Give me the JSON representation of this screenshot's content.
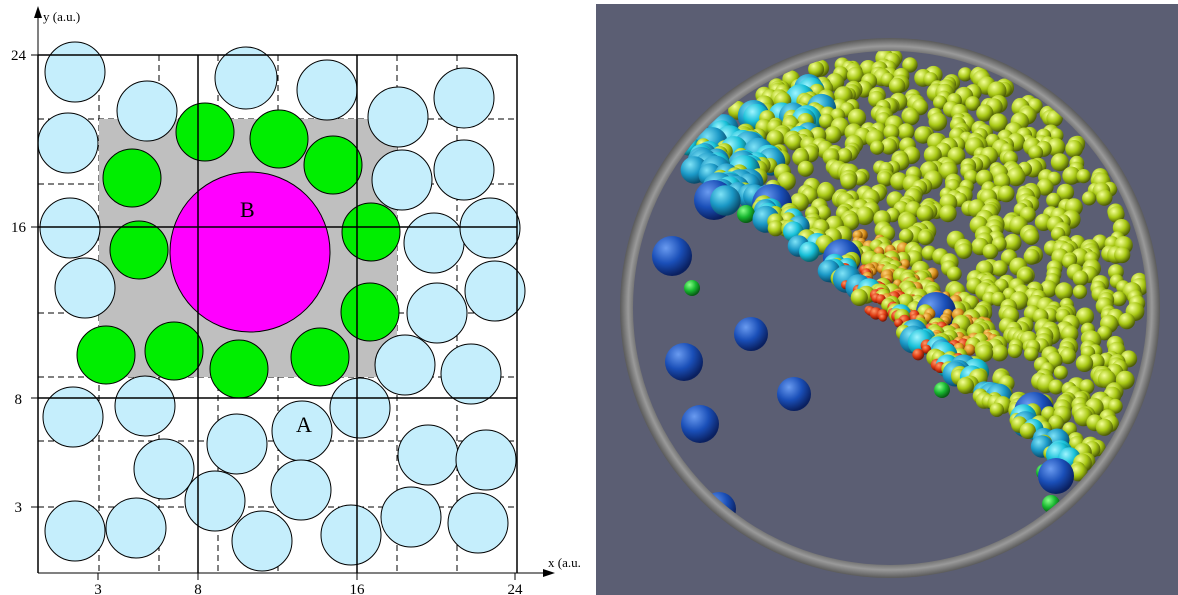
{
  "grid_figure": {
    "x_axis_label": "x (a.u.)",
    "y_axis_label": "y (a.u.)",
    "x_ticks": [
      "3",
      "8",
      "16",
      "24"
    ],
    "y_ticks": [
      "3",
      "8",
      "16",
      "24"
    ],
    "large_particle_label": "B",
    "small_particle_label": "A",
    "colors": {
      "small_particle": "#c5eefc",
      "neighbor_particle": "#00ee00",
      "large_particle": "#ff00ff",
      "neighbor_region": "#bfbfbf",
      "coarse_grid": "#000000",
      "fine_grid": "#000000"
    }
  },
  "simulation_render": {
    "colors": {
      "background": "#5b5e73",
      "drum_rim": "#8a8a8a",
      "large_sphere": "#1a5fc2",
      "medium_sphere": "#1fa9cf",
      "small_sphere": "#a8cc1a",
      "core_sphere": "#e0401a"
    }
  }
}
